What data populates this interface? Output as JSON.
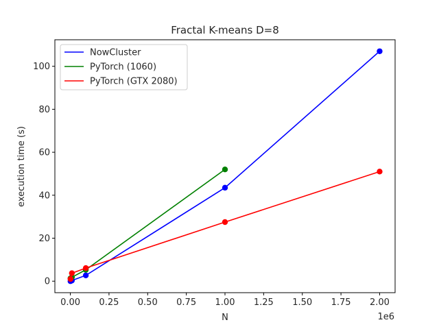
{
  "chart_data": {
    "type": "line",
    "title": "Fractal K-means D=8",
    "xlabel": "N",
    "ylabel": "execution time (s)",
    "x_offset_label": "1e6",
    "xlim": [
      -0.1,
      2.1
    ],
    "ylim": [
      -5.35,
      112.35
    ],
    "x_ticks": [
      0.0,
      0.25,
      0.5,
      0.75,
      1.0,
      1.25,
      1.5,
      1.75,
      2.0
    ],
    "x_tick_labels": [
      "0.00",
      "0.25",
      "0.50",
      "0.75",
      "1.00",
      "1.25",
      "1.50",
      "1.75",
      "2.00"
    ],
    "y_ticks": [
      0,
      20,
      40,
      60,
      80,
      100
    ],
    "y_tick_labels": [
      "0",
      "20",
      "40",
      "60",
      "80",
      "100"
    ],
    "grid": false,
    "legend_position": "top-left",
    "series": [
      {
        "name": "NowCluster",
        "color": "#0000ff",
        "x": [
          0.001,
          0.01,
          0.1,
          1.0,
          2.0
        ],
        "y": [
          0.0,
          0.3,
          2.7,
          43.5,
          107.0
        ]
      },
      {
        "name": "PyTorch (1060)",
        "color": "#008000",
        "x": [
          0.001,
          0.01,
          0.1,
          1.0
        ],
        "y": [
          1.3,
          1.8,
          5.3,
          52.0
        ]
      },
      {
        "name": "PyTorch (GTX 2080)",
        "color": "#ff0000",
        "x": [
          0.001,
          0.01,
          0.1,
          1.0,
          2.0
        ],
        "y": [
          1.0,
          3.7,
          6.1,
          27.5,
          51.0
        ]
      }
    ]
  }
}
